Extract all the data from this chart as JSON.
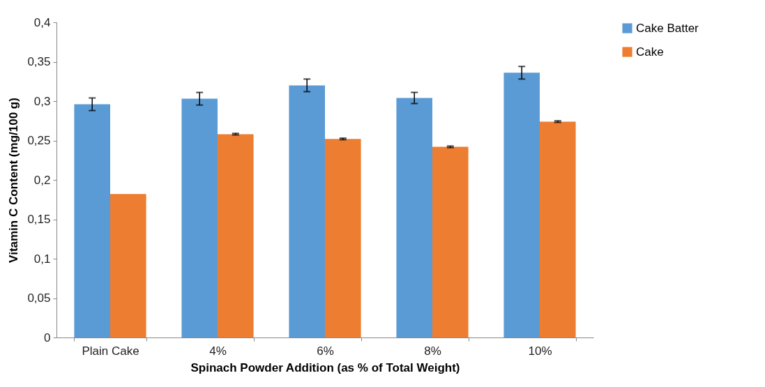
{
  "chart_data": {
    "type": "bar",
    "xlabel": "Spinach Powder Addition (as % of Total Weight)",
    "ylabel": "Vitamin C Content (mg/100 g)",
    "categories": [
      "Plain Cake",
      "4%",
      "6%",
      "8%",
      "10%"
    ],
    "series": [
      {
        "name": "Cake Batter",
        "color": "#5b9bd5",
        "values": [
          0.296,
          0.303,
          0.32,
          0.304,
          0.336
        ],
        "errors": [
          0.008,
          0.008,
          0.008,
          0.007,
          0.008
        ]
      },
      {
        "name": "Cake",
        "color": "#ed7d31",
        "values": [
          0.182,
          0.258,
          0.252,
          0.242,
          0.274
        ],
        "errors": [
          null,
          0.001,
          0.001,
          0.001,
          0.001
        ]
      }
    ],
    "ylim": [
      0,
      0.4
    ],
    "yticks": [
      0,
      {
        "value": 0.05,
        "label": "0,05"
      },
      {
        "value": 0.1,
        "label": "0,1"
      },
      {
        "value": 0.15,
        "label": "0,15"
      },
      {
        "value": 0.2,
        "label": "0,2"
      },
      {
        "value": 0.25,
        "label": "0,25"
      },
      {
        "value": 0.3,
        "label": "0,3"
      },
      {
        "value": 0.35,
        "label": "0,35"
      },
      {
        "value": 0.4,
        "label": "0,4"
      }
    ],
    "grid": false,
    "legend": "right"
  }
}
